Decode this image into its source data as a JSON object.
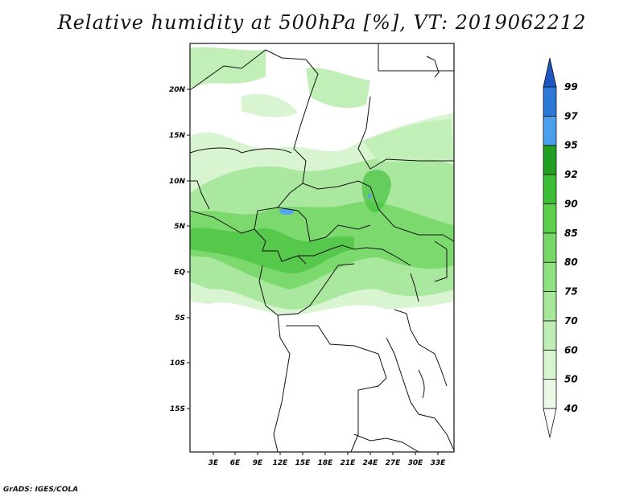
{
  "title": "Relative humidity at 500hPa [%], VT: 2019062212",
  "credit": "GrADS: IGES/COLA",
  "map": {
    "lat_labels": [
      "20N",
      "15N",
      "10N",
      "5N",
      "EQ",
      "5S",
      "10S",
      "15S"
    ],
    "lon_labels": [
      "3E",
      "6E",
      "9E",
      "12E",
      "15E",
      "18E",
      "21E",
      "24E",
      "27E",
      "30E",
      "33E"
    ]
  },
  "colorbar": {
    "levels": [
      "40",
      "50",
      "60",
      "70",
      "75",
      "80",
      "85",
      "90",
      "92",
      "95",
      "97",
      "99"
    ],
    "colors": [
      "#eaf9e6",
      "#d6f4ce",
      "#bfeeb4",
      "#a7e79a",
      "#8fe07f",
      "#76d866",
      "#5ccf4c",
      "#3cbf34",
      "#229f22",
      "#4aa0ec",
      "#2d79d8",
      "#1f56c2"
    ]
  }
}
